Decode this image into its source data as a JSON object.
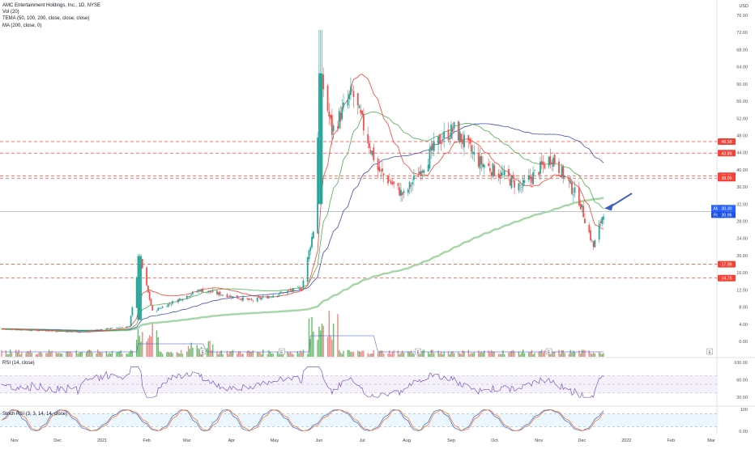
{
  "legend": {
    "title": "AMC Entertainment Holdings, Inc., 1D, NYSE",
    "vol": "Vol (20)",
    "tema": "TEMA (50, 100, 200, close, close, close)",
    "ma": "MA (200, close, 0)"
  },
  "rsi_label": "RSI (14, close)",
  "stoch_label": "Stoch RSI (3, 3, 14, 14, close)",
  "currency": "USD",
  "price_axis": [
    "76.00",
    "72.00",
    "68.00",
    "64.00",
    "60.00",
    "56.00",
    "52.00",
    "48.00",
    "44.00",
    "40.00",
    "36.00",
    "32.00",
    "28.00",
    "24.00",
    "20.00",
    "16.00",
    "12.00",
    "8.00",
    "4.00",
    "0.00"
  ],
  "rsi_axis": [
    "100.00",
    "60.00",
    "20.00"
  ],
  "stoch_axis": [
    "100",
    "0.00"
  ],
  "time_axis": [
    "Nov",
    "Dec",
    "2021",
    "Feb",
    "Mar",
    "Apr",
    "May",
    "Jun",
    "Jul",
    "Aug",
    "Sep",
    "Oct",
    "Nov",
    "Dec",
    "2022",
    "Feb",
    "Mar"
  ],
  "levels": [
    {
      "label": "46.58",
      "value": 46.58
    },
    {
      "label": "43.89",
      "value": 43.89
    },
    {
      "label": "38.61",
      "value": 38.61
    },
    {
      "label": "38.05",
      "value": 38.05
    },
    {
      "label": "17.99",
      "value": 17.99
    },
    {
      "label": "14.76",
      "value": 14.76
    }
  ],
  "tags": {
    "symbol": "AMC",
    "price": "30.30",
    "post_label": "Post",
    "post_price": "30.96"
  },
  "event_markers": [
    "E",
    "E",
    "E",
    "E",
    "E"
  ],
  "colors": {
    "up": "#26a69a",
    "down": "#ef5350",
    "volume_up": "#4caf50",
    "volume_down": "#e57373",
    "level_line": "#f44336",
    "tema_red": "#f44336",
    "tema_green": "#4caf50",
    "tema_blue": "#3f51b5",
    "ma_lightgreen": "#a5d6a7",
    "arrow": "#3d5fc4",
    "rsi_line": "#7e57c2",
    "stoch_k": "#2962ff",
    "stoch_d": "#ff6d00"
  },
  "icons": {
    "annotation": "arrow-icon"
  },
  "chart_data": {
    "type": "candlestick",
    "title": "AMC Entertainment Holdings, Inc., 1D, NYSE",
    "yunit": "USD",
    "ylim": [
      -2,
      78
    ],
    "keypoints": [
      {
        "date": "2020-10-23",
        "price": 2.9
      },
      {
        "date": "2020-12-15",
        "price": 2.2
      },
      {
        "date": "2021-01-20",
        "price": 3.5
      },
      {
        "date": "2021-01-27",
        "price": 19.9
      },
      {
        "date": "2021-02-05",
        "price": 7.0
      },
      {
        "date": "2021-03-10",
        "price": 12.0
      },
      {
        "date": "2021-04-15",
        "price": 9.5
      },
      {
        "date": "2021-05-20",
        "price": 12.5
      },
      {
        "date": "2021-05-28",
        "price": 26.0
      },
      {
        "date": "2021-06-02",
        "price": 62.5
      },
      {
        "date": "2021-06-10",
        "price": 49.0
      },
      {
        "date": "2021-06-24",
        "price": 58.0
      },
      {
        "date": "2021-07-12",
        "price": 40.0
      },
      {
        "date": "2021-07-30",
        "price": 34.0
      },
      {
        "date": "2021-08-24",
        "price": 47.0
      },
      {
        "date": "2021-09-03",
        "price": 49.5
      },
      {
        "date": "2021-09-20",
        "price": 42.0
      },
      {
        "date": "2021-10-20",
        "price": 36.0
      },
      {
        "date": "2021-11-10",
        "price": 43.0
      },
      {
        "date": "2021-11-29",
        "price": 33.0
      },
      {
        "date": "2021-12-09",
        "price": 22.0
      },
      {
        "date": "2021-12-16",
        "price": 30.3
      }
    ],
    "annotations": [
      "Blue arrow pointing to the latest price near the 200-day moving average"
    ]
  }
}
